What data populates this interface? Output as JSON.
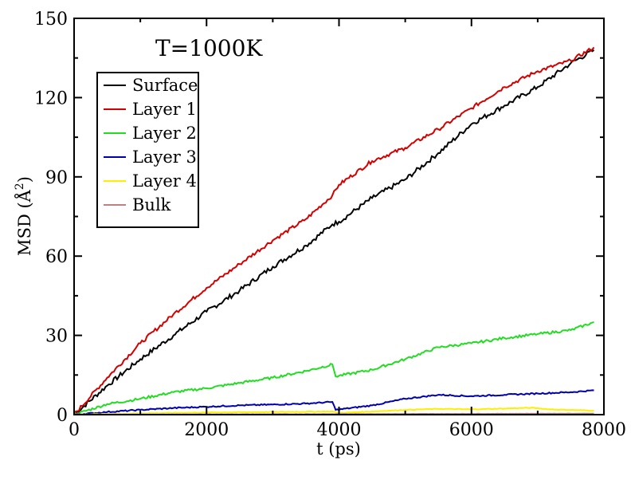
{
  "chart_data": {
    "type": "line",
    "title": "T=1000K",
    "xlabel": "t (ps)",
    "ylabel_main": "MSD (Å",
    "ylabel_sup": "2",
    "ylabel_close": ")",
    "xlim": [
      0,
      8000
    ],
    "ylim": [
      0,
      150
    ],
    "xticks": [
      0,
      2000,
      4000,
      6000,
      8000
    ],
    "yticks": [
      0,
      30,
      60,
      90,
      120,
      150
    ],
    "grid": false,
    "legend_position": "top-left",
    "series": [
      {
        "name": "Surface",
        "color": "#000000",
        "x": [
          0,
          500,
          1000,
          1500,
          2000,
          2500,
          3000,
          3500,
          3900,
          4000,
          4500,
          5000,
          5500,
          6000,
          6500,
          7000,
          7500,
          7850
        ],
        "y": [
          0,
          11,
          21,
          30,
          39,
          47,
          56,
          64,
          72,
          73,
          82,
          89,
          99,
          110,
          117,
          124,
          133,
          138
        ]
      },
      {
        "name": "Layer 1",
        "color": "#d40000",
        "x": [
          0,
          500,
          1000,
          1500,
          2000,
          2500,
          3000,
          3500,
          3900,
          4000,
          4500,
          5000,
          5500,
          6000,
          6500,
          7000,
          7500,
          7850
        ],
        "y": [
          0,
          14,
          27,
          38,
          48,
          57,
          66,
          74,
          83,
          87,
          96,
          101,
          108,
          116,
          124,
          130,
          134,
          139
        ]
      },
      {
        "name": "Layer 2",
        "color": "#22dd22",
        "x": [
          0,
          500,
          1000,
          1500,
          2000,
          2500,
          3000,
          3500,
          3900,
          3950,
          4500,
          5000,
          5500,
          6000,
          6500,
          7000,
          7500,
          7850
        ],
        "y": [
          0,
          4,
          6,
          8.5,
          10,
          12,
          14,
          16.5,
          19,
          14.5,
          17,
          21,
          25.5,
          27,
          29,
          30.5,
          32,
          35
        ]
      },
      {
        "name": "Layer 3",
        "color": "#0000b0",
        "x": [
          0,
          500,
          1000,
          1500,
          2000,
          2500,
          3000,
          3500,
          3900,
          3950,
          4500,
          5000,
          5500,
          6000,
          6500,
          7000,
          7500,
          7850
        ],
        "y": [
          0,
          1,
          1.8,
          2.5,
          3,
          3.5,
          3.8,
          4.2,
          4.8,
          1.8,
          3.5,
          6,
          7.5,
          7,
          7.5,
          8,
          8.5,
          9.2
        ]
      },
      {
        "name": "Layer 4",
        "color": "#ffee00",
        "x": [
          0,
          1000,
          2000,
          3000,
          3900,
          4000,
          5000,
          5500,
          6000,
          6500,
          6900,
          7200,
          7850
        ],
        "y": [
          0,
          0.5,
          0.8,
          1.0,
          1.2,
          0.6,
          1.8,
          2.2,
          2.0,
          2.3,
          2.6,
          2.0,
          1.5
        ]
      },
      {
        "name": "Bulk",
        "color": "#c08080",
        "x": [
          0,
          2000,
          4000,
          6000,
          7850
        ],
        "y": [
          0,
          0.1,
          0.2,
          0.3,
          0.4
        ]
      }
    ]
  }
}
